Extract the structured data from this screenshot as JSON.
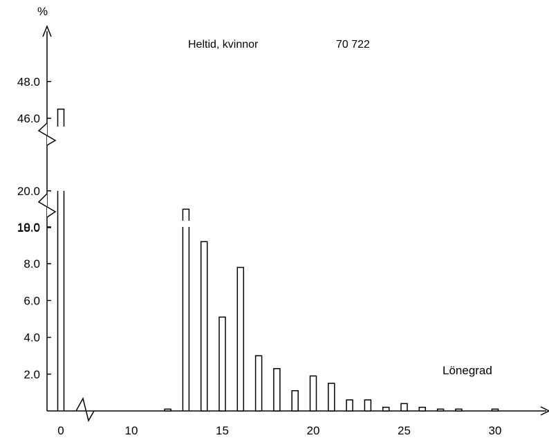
{
  "chart_data": {
    "type": "bar",
    "title": "Heltid, kvinnor",
    "total": "70 722",
    "ylabel": "%",
    "xlabel": "Lönegrad",
    "x_ticks": [
      "0",
      "10",
      "15",
      "20",
      "25",
      "30"
    ],
    "y_ticks": [
      "2.0",
      "4.0",
      "6.0",
      "8.0",
      "10.0",
      "18.0",
      "20.0",
      "46.0",
      "48.0"
    ],
    "y_axis_breaks": [
      "10.0–18.0",
      "20.0–46.0"
    ],
    "x_axis_break": "1–9",
    "x": [
      0,
      12,
      13,
      14,
      15,
      16,
      17,
      18,
      19,
      20,
      21,
      22,
      23,
      24,
      25,
      26,
      27,
      28,
      30
    ],
    "values": [
      46.5,
      0.1,
      19.0,
      9.2,
      5.1,
      7.8,
      3.0,
      2.3,
      1.1,
      1.9,
      1.5,
      0.6,
      0.6,
      0.2,
      0.4,
      0.2,
      0.1,
      0.1,
      0.1
    ]
  }
}
